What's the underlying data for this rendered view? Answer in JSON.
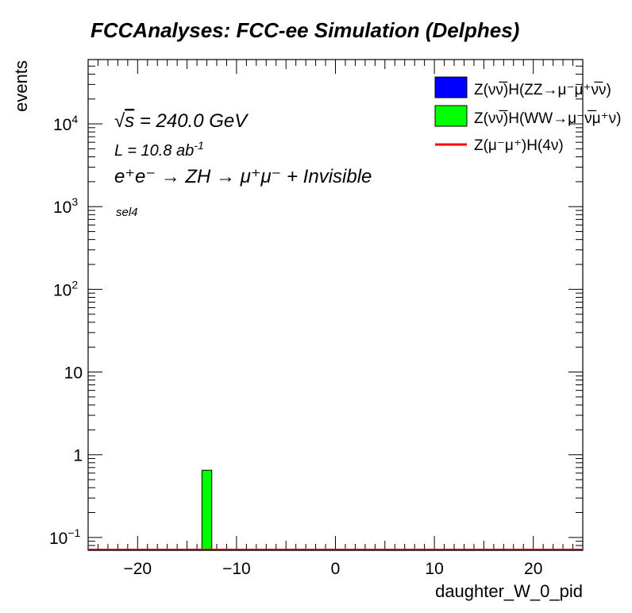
{
  "chart_data": {
    "type": "bar",
    "title": "FCCAnalyses: FCC-ee Simulation (Delphes)",
    "xlabel": "daughter_W_0_pid",
    "ylabel": "events",
    "xlim": [
      -25,
      25
    ],
    "ylim": [
      0.07,
      60000
    ],
    "yscale": "log",
    "x_ticks": [
      -20,
      -10,
      0,
      10,
      20
    ],
    "x_tick_labels": [
      "−20",
      "−10",
      "0",
      "10",
      "20"
    ],
    "y_ticks": [
      {
        "value": 0.1,
        "base": "10",
        "exp": "−1"
      },
      {
        "value": 1,
        "base": "1",
        "exp": ""
      },
      {
        "value": 10,
        "base": "10",
        "exp": ""
      },
      {
        "value": 100,
        "base": "10",
        "exp": "2"
      },
      {
        "value": 1000,
        "base": "10",
        "exp": "3"
      },
      {
        "value": 10000,
        "base": "10",
        "exp": "4"
      }
    ],
    "bin_width": 1,
    "annotations": {
      "energy_prefix": "√",
      "energy_s": "s",
      "energy_value": " = 240.0 GeV",
      "lumi_text": "L = 10.8 ab",
      "lumi_exp": "-1",
      "process_text": "e⁺e⁻ → ZH → μ⁺μ⁻ + Invisible",
      "selection": "sel4"
    },
    "legend_position": "top-right",
    "series": [
      {
        "name": "Z(νν̅)H(ZZ→μ⁻μ⁺ν̅ν)",
        "color": "#0000ff",
        "style": "fill",
        "bins": []
      },
      {
        "name": "Z(νν̅)H(WW→μ⁻ν̅μ⁺ν)",
        "color": "#00ff00",
        "style": "fill",
        "bins": [
          {
            "x": -13,
            "y": 0.65
          }
        ]
      },
      {
        "name": "Z(μ⁻μ⁺)H(4ν)",
        "color": "#ff0000",
        "style": "line",
        "bins": []
      }
    ]
  }
}
